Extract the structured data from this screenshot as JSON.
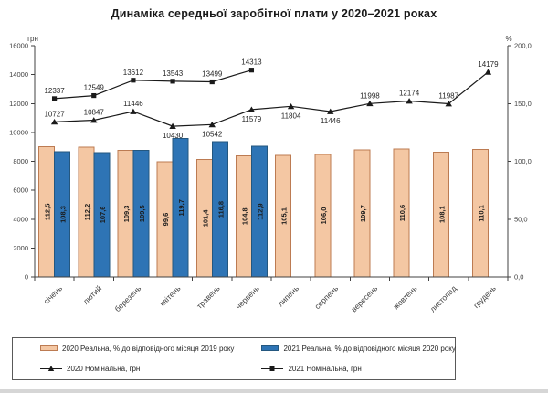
{
  "title": "Динаміка середньої заробітної плати у 2020–2021 роках",
  "chart_data": {
    "type": "bar",
    "subtype": "combo-bar-line-dual-axis",
    "categories": [
      "січень",
      "лютий",
      "березень",
      "квітень",
      "травень",
      "червень",
      "липень",
      "серпень",
      "вересень",
      "жовтень",
      "листопад",
      "грудень"
    ],
    "left_axis": {
      "label": "грн",
      "min": 0,
      "max": 16000,
      "ticks": [
        "0",
        "2000",
        "4000",
        "6000",
        "8000",
        "10000",
        "12000",
        "14000",
        "16000"
      ]
    },
    "right_axis": {
      "label": "%",
      "min": 0,
      "max": 200,
      "ticks": [
        "0,0",
        "50,0",
        "100,0",
        "150,0",
        "200,0"
      ]
    },
    "grid": "off",
    "legend_position": "bottom",
    "series": [
      {
        "name": "2020 Реальна, % до відповідного місяця 2019 року",
        "type": "bar",
        "axis": "right",
        "color": "#f4c7a3",
        "border_color": "#bc7b52",
        "values": [
          112.5,
          112.2,
          109.3,
          99.6,
          101.4,
          104.8,
          105.1,
          106.0,
          109.7,
          110.6,
          108.1,
          110.1
        ],
        "value_labels": [
          "112,5",
          "112,2",
          "109,3",
          "99,6",
          "101,4",
          "104,8",
          "105,1",
          "106,0",
          "109,7",
          "110,6",
          "108,1",
          "110,1"
        ]
      },
      {
        "name": "2021 Реальна, % до відповідного місяця 2020 року",
        "type": "bar",
        "axis": "right",
        "color": "#2e74b5",
        "border_color": "#24577f",
        "values": [
          108.3,
          107.6,
          109.5,
          119.7,
          116.8,
          112.9
        ],
        "value_labels": [
          "108,3",
          "107,6",
          "109,5",
          "119,7",
          "116,8",
          "112,9"
        ]
      },
      {
        "name": "2020 Номінальна, грн",
        "type": "line",
        "axis": "left",
        "marker": "triangle",
        "color": "#1a1a1a",
        "values": [
          10727,
          10847,
          11446,
          10430,
          10542,
          11579,
          11804,
          11446,
          11998,
          12174,
          11987,
          14179
        ],
        "value_labels": [
          "10727",
          "10847",
          "11446",
          "10430",
          "10542",
          "11579",
          "11804",
          "11446",
          "11998",
          "12174",
          "11987",
          "14179"
        ],
        "label_positions": [
          "above",
          "above",
          "above",
          "below",
          "below",
          "below",
          "below",
          "below",
          "above",
          "above",
          "above",
          "above"
        ]
      },
      {
        "name": "2021 Номінальна, грн",
        "type": "line",
        "axis": "left",
        "marker": "square",
        "color": "#1a1a1a",
        "values": [
          12337,
          12549,
          13612,
          13543,
          13499,
          14313
        ],
        "value_labels": [
          "12337",
          "12549",
          "13612",
          "13543",
          "13499",
          "14313"
        ],
        "label_positions": [
          "above",
          "above",
          "above",
          "above",
          "above",
          "above"
        ]
      }
    ]
  },
  "legend": {
    "items": [
      {
        "label": "2020 Реальна, % до відповідного місяця 2019 року",
        "swatch": "bar-peach"
      },
      {
        "label": "2021 Реальна, % до відповідного місяця 2020 року",
        "swatch": "bar-blue"
      },
      {
        "label": "2020 Номінальна, грн",
        "swatch": "line-triangle"
      },
      {
        "label": "2021 Номінальна, грн",
        "swatch": "line-square"
      }
    ]
  }
}
